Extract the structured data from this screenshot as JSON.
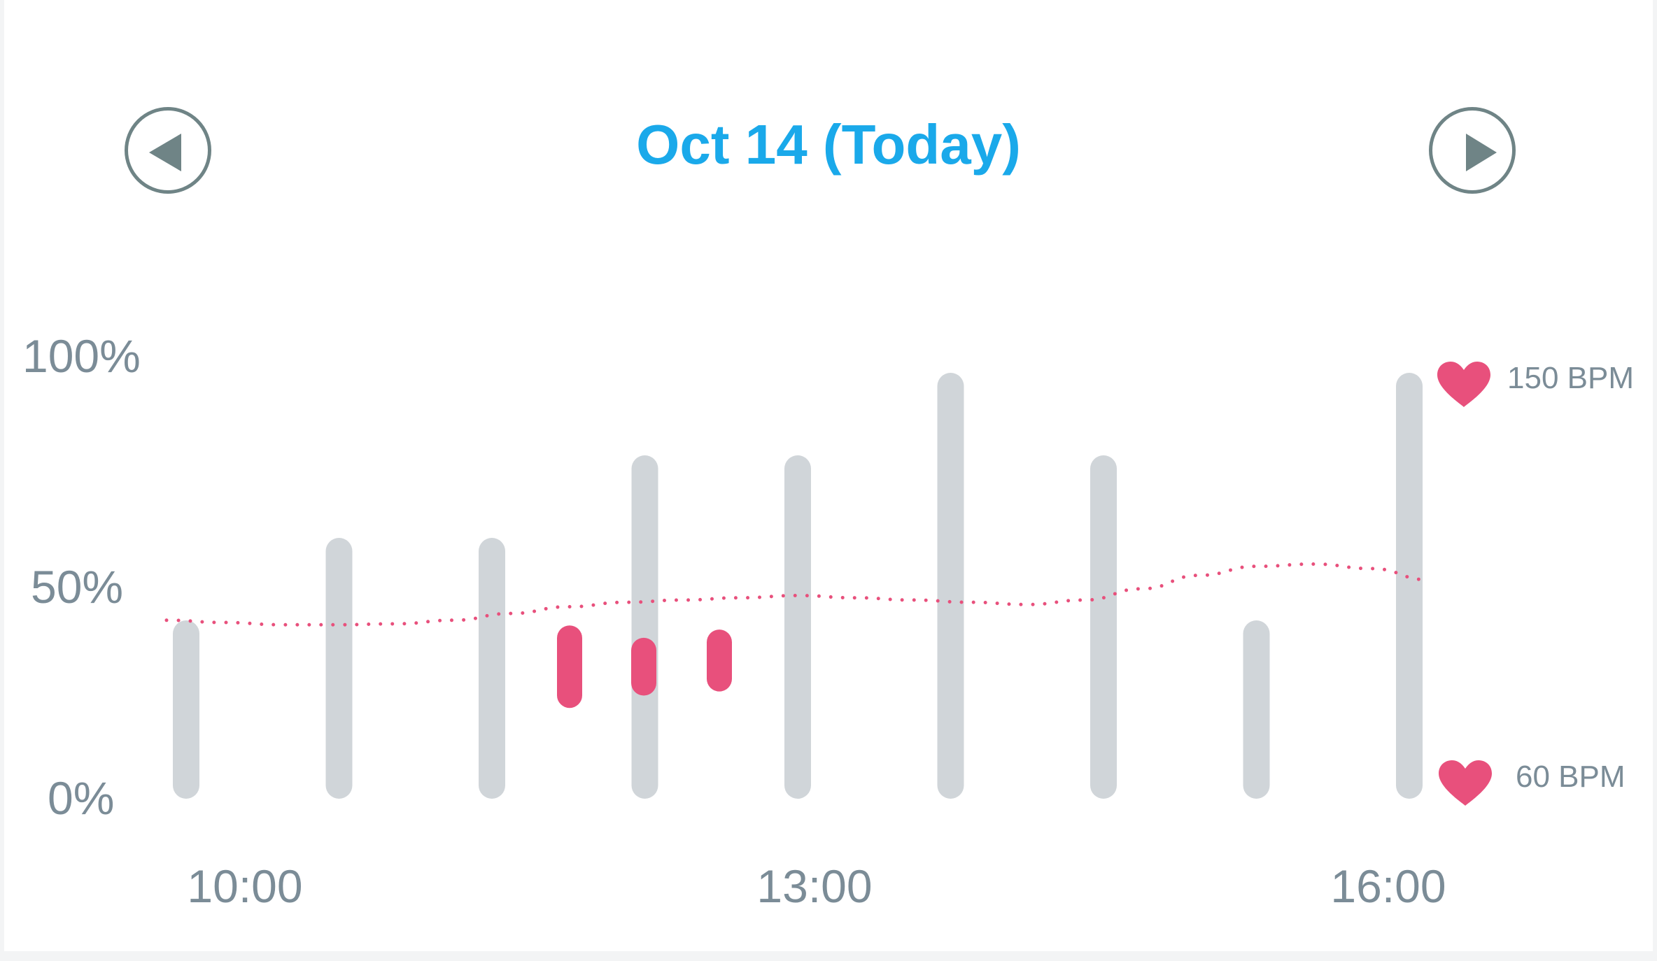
{
  "header": {
    "date_title": "Oct 14 (Today)",
    "prev_icon": "chevron-left-icon",
    "next_icon": "chevron-right-icon"
  },
  "colors": {
    "title": "#1aa9ea",
    "bar": "#d0d5d9",
    "highlight": "#e8507c",
    "axis_text": "#7b8c97",
    "nav": "#6f8486"
  },
  "chart_data": {
    "type": "bar",
    "yticks": [
      "100%",
      "50%",
      "0%"
    ],
    "ylim": [
      0,
      100
    ],
    "xticks": [
      "10:00",
      "13:00",
      "16:00"
    ],
    "bars": [
      40,
      60,
      60,
      80,
      80,
      100,
      80,
      40,
      100
    ],
    "highlights": [
      {
        "low": 22,
        "high": 42
      },
      {
        "low": 25,
        "high": 39
      },
      {
        "low": 26,
        "high": 41
      }
    ],
    "heart_rate": {
      "unit": "BPM",
      "max_label": "150 BPM",
      "min_label": "60 BPM",
      "range": [
        60,
        150
      ],
      "values": [
        96,
        95.5,
        95,
        95,
        95.2,
        96,
        97.5,
        99,
        100,
        100.5,
        101,
        101.5,
        101,
        100.5,
        100,
        99.5,
        100.5,
        103,
        106,
        108,
        108.5,
        107.5,
        105
      ]
    }
  }
}
